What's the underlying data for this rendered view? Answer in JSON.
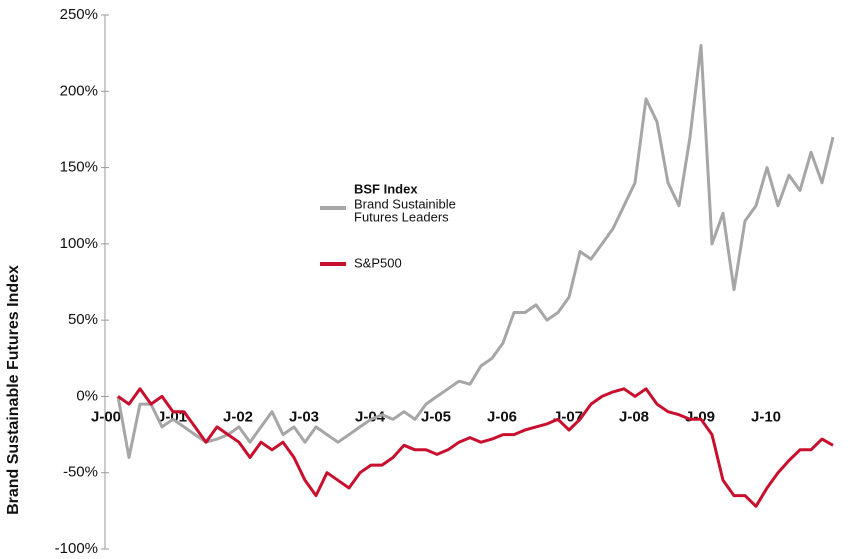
{
  "chart_data": {
    "type": "line",
    "y_axis_label": "Brand Sustainable Futures Index",
    "categories": [
      "J-00",
      null,
      null,
      null,
      null,
      null,
      "J-01",
      null,
      null,
      null,
      null,
      null,
      "J-02",
      null,
      null,
      null,
      null,
      null,
      "J-03",
      null,
      null,
      null,
      null,
      null,
      "J-04",
      null,
      null,
      null,
      null,
      null,
      "J-05",
      null,
      null,
      null,
      null,
      null,
      "J-06",
      null,
      null,
      null,
      null,
      null,
      "J-07",
      null,
      null,
      null,
      null,
      null,
      "J-08",
      null,
      null,
      null,
      null,
      null,
      "J-09",
      null,
      null,
      null,
      null,
      null,
      "J-10",
      null,
      null,
      null,
      null,
      null
    ],
    "series": [
      {
        "name": "BSF Index",
        "legend_note": [
          "Brand Sustainible",
          "Futures Leaders"
        ],
        "color": "#a6a6a6",
        "values": [
          0,
          -40,
          -5,
          -5,
          -20,
          -15,
          -20,
          -25,
          -30,
          -28,
          -25,
          -20,
          -30,
          -20,
          -10,
          -25,
          -20,
          -30,
          -20,
          -25,
          -30,
          -25,
          -20,
          -15,
          -12,
          -15,
          -10,
          -15,
          -5,
          0,
          5,
          10,
          8,
          20,
          25,
          35,
          55,
          55,
          60,
          50,
          55,
          65,
          95,
          90,
          100,
          110,
          125,
          140,
          195,
          180,
          140,
          125,
          170,
          230,
          100,
          120,
          70,
          115,
          125,
          150,
          125,
          145,
          135,
          160,
          140,
          170
        ]
      },
      {
        "name": "S&P500",
        "color": "#c8102e",
        "values": [
          0,
          -5,
          5,
          -5,
          0,
          -10,
          -10,
          -20,
          -30,
          -20,
          -25,
          -30,
          -40,
          -30,
          -35,
          -30,
          -40,
          -55,
          -65,
          -50,
          -55,
          -60,
          -50,
          -45,
          -45,
          -40,
          -32,
          -35,
          -35,
          -38,
          -35,
          -30,
          -27,
          -30,
          -28,
          -25,
          -25,
          -22,
          -20,
          -18,
          -15,
          -22,
          -15,
          -5,
          0,
          3,
          5,
          0,
          5,
          -5,
          -10,
          -12,
          -15,
          -15,
          -25,
          -55,
          -65,
          -65,
          -72,
          -60,
          -50,
          -42,
          -35,
          -35,
          -28,
          -32
        ]
      }
    ],
    "ylim": [
      -100,
      250
    ],
    "yticks": [
      {
        "value": -100,
        "label": "-100%"
      },
      {
        "value": -50,
        "label": "-50%"
      },
      {
        "value": 0,
        "label": "0%"
      },
      {
        "value": 50,
        "label": "50%"
      },
      {
        "value": 100,
        "label": "100%"
      },
      {
        "value": 150,
        "label": "150%"
      },
      {
        "value": 200,
        "label": "200%"
      },
      {
        "value": 250,
        "label": "250%"
      }
    ],
    "grid": false
  }
}
